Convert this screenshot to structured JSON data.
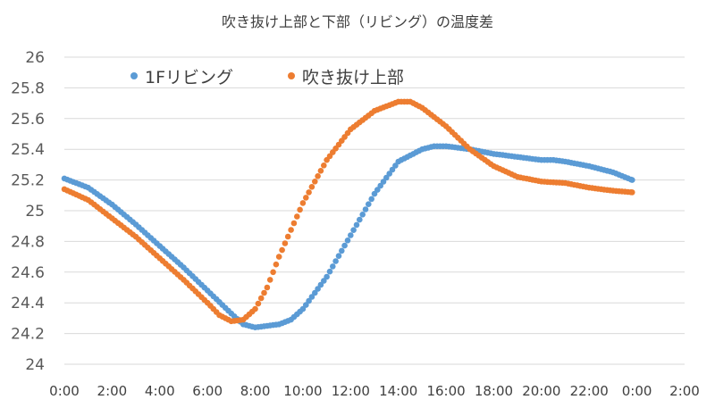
{
  "chart_data": {
    "type": "scatter",
    "title": "吹き抜け上部と下部（リビング）の温度差",
    "xlabel": "",
    "ylabel": "",
    "x_ticks": [
      "0:00",
      "2:00",
      "4:00",
      "6:00",
      "8:00",
      "10:00",
      "12:00",
      "14:00",
      "16:00",
      "18:00",
      "20:00",
      "22:00",
      "0:00",
      "2:00"
    ],
    "y_ticks": [
      "24",
      "24.2",
      "24.4",
      "24.6",
      "24.8",
      "25",
      "25.2",
      "25.4",
      "25.6",
      "25.8",
      "26"
    ],
    "xlim": [
      0,
      26
    ],
    "ylim": [
      24,
      26
    ],
    "grid": "horizontal",
    "legend_position": "top-left",
    "series": [
      {
        "name": "1Fリビング",
        "color": "#5b9bd5",
        "points": [
          [
            0.0,
            25.21
          ],
          [
            1.0,
            25.15
          ],
          [
            2.0,
            25.04
          ],
          [
            3.0,
            24.91
          ],
          [
            4.0,
            24.77
          ],
          [
            5.0,
            24.63
          ],
          [
            6.0,
            24.48
          ],
          [
            7.0,
            24.33
          ],
          [
            7.5,
            24.26
          ],
          [
            8.0,
            24.24
          ],
          [
            8.5,
            24.25
          ],
          [
            9.0,
            24.26
          ],
          [
            9.5,
            24.29
          ],
          [
            10.0,
            24.36
          ],
          [
            11.0,
            24.57
          ],
          [
            12.0,
            24.84
          ],
          [
            13.0,
            25.11
          ],
          [
            14.0,
            25.32
          ],
          [
            15.0,
            25.4
          ],
          [
            15.5,
            25.42
          ],
          [
            16.0,
            25.42
          ],
          [
            17.0,
            25.4
          ],
          [
            18.0,
            25.37
          ],
          [
            19.0,
            25.35
          ],
          [
            20.0,
            25.33
          ],
          [
            20.5,
            25.33
          ],
          [
            21.0,
            25.32
          ],
          [
            22.0,
            25.29
          ],
          [
            23.0,
            25.25
          ],
          [
            23.8,
            25.2
          ]
        ]
      },
      {
        "name": "吹き抜け上部",
        "color": "#ed7d31",
        "points": [
          [
            0.0,
            25.14
          ],
          [
            1.0,
            25.07
          ],
          [
            2.0,
            24.95
          ],
          [
            3.0,
            24.83
          ],
          [
            4.0,
            24.69
          ],
          [
            5.0,
            24.55
          ],
          [
            6.0,
            24.4
          ],
          [
            6.5,
            24.32
          ],
          [
            7.0,
            24.28
          ],
          [
            7.5,
            24.29
          ],
          [
            8.0,
            24.36
          ],
          [
            8.5,
            24.5
          ],
          [
            9.0,
            24.7
          ],
          [
            10.0,
            25.05
          ],
          [
            11.0,
            25.33
          ],
          [
            12.0,
            25.53
          ],
          [
            13.0,
            25.65
          ],
          [
            14.0,
            25.71
          ],
          [
            14.5,
            25.71
          ],
          [
            15.0,
            25.67
          ],
          [
            16.0,
            25.55
          ],
          [
            17.0,
            25.4
          ],
          [
            18.0,
            25.29
          ],
          [
            19.0,
            25.22
          ],
          [
            20.0,
            25.19
          ],
          [
            21.0,
            25.18
          ],
          [
            22.0,
            25.15
          ],
          [
            23.0,
            25.13
          ],
          [
            23.8,
            25.12
          ]
        ]
      }
    ]
  }
}
